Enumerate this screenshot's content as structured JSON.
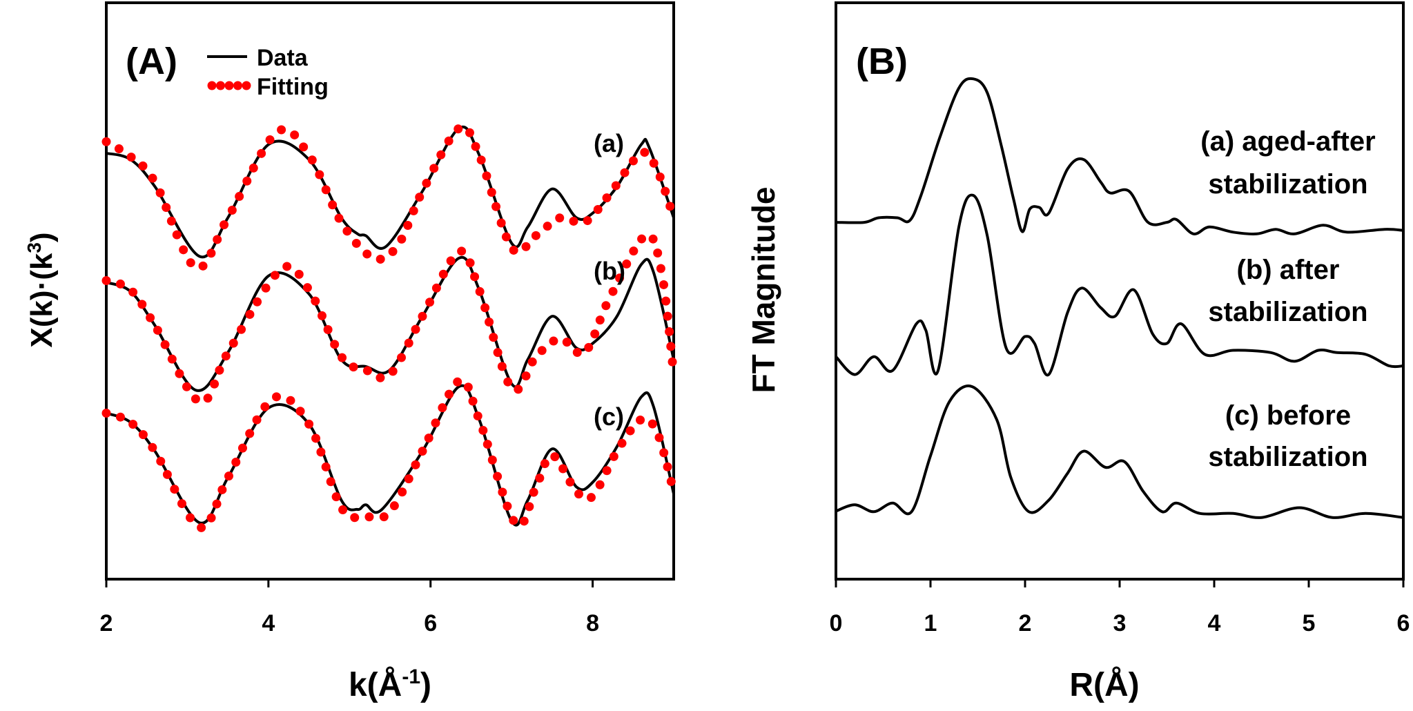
{
  "chart_data": [
    {
      "type": "line",
      "panel_label": "(A)",
      "xlabel": "k(Å-1)",
      "xlabel_base": "k(Å",
      "xlabel_sup": "-1",
      "xlabel_close": ")",
      "ylabel": "X(k)·(k3)",
      "ylabel_base": "X(k)·(k",
      "ylabel_sup": "3",
      "ylabel_close": ")",
      "xlim": [
        2,
        9
      ],
      "ylim": [
        0,
        10
      ],
      "xticks": [
        2,
        4,
        6,
        8
      ],
      "xtick_labels": [
        "2",
        "4",
        "6",
        "8"
      ],
      "grid": false,
      "legend": {
        "placement": "top-left",
        "entries": [
          {
            "label": "Data",
            "style": "solid",
            "color": "#000000"
          },
          {
            "label": "Fitting",
            "style": "dotted",
            "color": "#ff0000"
          }
        ]
      },
      "curve_labels": [
        "(a)",
        "(b)",
        "(c)"
      ],
      "series": [
        {
          "name": "(a) Data",
          "style": "solid",
          "color": "#000000",
          "x": [
            2,
            2.3,
            2.6,
            3.15,
            3.5,
            4.0,
            4.5,
            4.9,
            5.1,
            5.2,
            5.45,
            5.9,
            6.35,
            6.6,
            7.0,
            7.2,
            7.5,
            7.8,
            8.0,
            8.3,
            8.6,
            8.7,
            9.0
          ],
          "y": [
            7.39,
            7.28,
            6.81,
            5.6,
            6.27,
            7.54,
            7.28,
            6.27,
            5.99,
            5.96,
            5.77,
            6.73,
            7.82,
            7.36,
            5.83,
            6.11,
            6.77,
            6.27,
            6.35,
            6.81,
            7.54,
            7.48,
            6.27
          ]
        },
        {
          "name": "(a) Fitting",
          "style": "dotted",
          "color": "#ff0000",
          "x": [
            2,
            2.3,
            2.6,
            3.1,
            3.5,
            4.1,
            4.5,
            4.9,
            5.3,
            5.6,
            5.9,
            6.35,
            6.6,
            7.0,
            7.3,
            7.6,
            7.9,
            8.2,
            8.6,
            8.8,
            9.0
          ],
          "y": [
            7.59,
            7.33,
            6.89,
            5.41,
            6.27,
            7.75,
            7.36,
            6.19,
            5.57,
            5.8,
            6.73,
            7.82,
            7.36,
            5.75,
            5.96,
            6.27,
            6.19,
            6.66,
            7.39,
            7.08,
            6.27
          ]
        },
        {
          "name": "(b) Data",
          "style": "solid",
          "color": "#000000",
          "x": [
            2,
            2.3,
            2.6,
            3.1,
            3.5,
            4.0,
            4.5,
            4.9,
            5.2,
            5.5,
            5.9,
            6.35,
            6.6,
            7.0,
            7.2,
            7.5,
            7.8,
            8.0,
            8.3,
            8.6,
            8.75,
            9.0
          ],
          "y": [
            5.15,
            4.99,
            4.4,
            3.28,
            3.93,
            5.26,
            4.95,
            3.81,
            3.69,
            3.63,
            4.56,
            5.57,
            5.02,
            3.39,
            3.81,
            4.56,
            4.01,
            4.09,
            4.56,
            5.46,
            5.33,
            3.81
          ]
        },
        {
          "name": "(b) Fitting",
          "style": "dotted",
          "color": "#ff0000",
          "x": [
            2,
            2.3,
            2.6,
            3.15,
            3.5,
            4.15,
            4.5,
            4.9,
            5.2,
            5.5,
            5.9,
            6.35,
            6.6,
            7.0,
            7.3,
            7.6,
            7.9,
            8.2,
            8.65,
            8.85,
            9.0
          ],
          "y": [
            5.18,
            5.02,
            4.4,
            3.08,
            3.93,
            5.37,
            5.02,
            3.86,
            3.63,
            3.55,
            4.56,
            5.68,
            5.02,
            3.31,
            3.86,
            4.17,
            3.93,
            4.85,
            5.96,
            5.33,
            3.55
          ]
        },
        {
          "name": "(c) Data",
          "style": "solid",
          "color": "#000000",
          "x": [
            2,
            2.3,
            2.6,
            3.15,
            3.5,
            4.0,
            4.5,
            4.9,
            5.1,
            5.2,
            5.4,
            5.9,
            6.35,
            6.6,
            7.0,
            7.2,
            7.5,
            7.8,
            8.0,
            8.3,
            8.6,
            8.75,
            9.0
          ],
          "y": [
            2.88,
            2.72,
            2.22,
            0.98,
            1.76,
            2.97,
            2.69,
            1.37,
            1.21,
            1.29,
            1.21,
            2.22,
            3.34,
            2.77,
            1.01,
            1.37,
            2.26,
            1.6,
            1.68,
            2.3,
            3.16,
            3.0,
            1.48
          ]
        },
        {
          "name": "(c) Fitting",
          "style": "dotted",
          "color": "#ff0000",
          "x": [
            2,
            2.3,
            2.6,
            3.15,
            3.5,
            4.05,
            4.5,
            4.9,
            5.2,
            5.5,
            5.9,
            6.35,
            6.6,
            7.05,
            7.3,
            7.5,
            7.8,
            8.0,
            8.3,
            8.6,
            8.8,
            9.0
          ],
          "y": [
            2.88,
            2.72,
            2.22,
            0.9,
            1.76,
            3.13,
            2.69,
            1.24,
            1.09,
            1.17,
            2.22,
            3.44,
            2.77,
            0.96,
            1.6,
            2.15,
            1.52,
            1.44,
            2.22,
            2.77,
            2.53,
            1.52
          ]
        }
      ]
    },
    {
      "type": "line",
      "panel_label": "(B)",
      "xlabel": "R(Å)",
      "ylabel": "FT Magnitude",
      "xlim": [
        0,
        6
      ],
      "ylim": [
        0,
        10
      ],
      "xticks": [
        0,
        1,
        2,
        3,
        4,
        5,
        6
      ],
      "xtick_labels": [
        "0",
        "1",
        "2",
        "3",
        "4",
        "5",
        "6"
      ],
      "grid": false,
      "annotations": [
        {
          "line1": "(a) aged-after",
          "line2": "stabilization"
        },
        {
          "line1": "(b) after",
          "line2": "stabilization"
        },
        {
          "line1": "(c) before",
          "line2": "stabilization"
        }
      ],
      "series": [
        {
          "name": "(a) aged-after stabilization",
          "color": "#000000",
          "x": [
            0,
            0.3,
            0.45,
            0.65,
            0.78,
            0.9,
            1.1,
            1.3,
            1.45,
            1.6,
            1.75,
            1.88,
            1.97,
            2.05,
            2.15,
            2.25,
            2.45,
            2.62,
            2.8,
            2.9,
            3.1,
            3.3,
            3.5,
            3.6,
            3.78,
            3.95,
            4.2,
            4.45,
            4.65,
            4.85,
            5.15,
            5.4,
            5.8,
            6.0
          ],
          "y": [
            6.19,
            6.19,
            6.27,
            6.27,
            6.22,
            6.66,
            7.67,
            8.52,
            8.68,
            8.44,
            7.51,
            6.58,
            6.03,
            6.42,
            6.45,
            6.35,
            7.12,
            7.28,
            6.89,
            6.7,
            6.73,
            6.19,
            6.19,
            6.24,
            5.99,
            6.11,
            6.02,
            5.99,
            6.07,
            5.99,
            6.14,
            6.02,
            6.07,
            6.05
          ]
        },
        {
          "name": "(b) after stabilization",
          "color": "#000000",
          "x": [
            0,
            0.2,
            0.4,
            0.6,
            0.85,
            0.95,
            1.08,
            1.3,
            1.45,
            1.6,
            1.8,
            2.0,
            2.1,
            2.25,
            2.45,
            2.6,
            2.8,
            2.95,
            3.15,
            3.35,
            3.5,
            3.65,
            3.9,
            4.2,
            4.6,
            4.85,
            5.1,
            5.3,
            5.6,
            5.85,
            6.0
          ],
          "y": [
            3.86,
            3.55,
            3.86,
            3.62,
            4.43,
            4.32,
            3.62,
            6.11,
            6.66,
            5.96,
            4.01,
            4.21,
            4.09,
            3.55,
            4.63,
            5.05,
            4.71,
            4.56,
            5.02,
            4.25,
            4.09,
            4.43,
            3.9,
            3.97,
            3.93,
            3.78,
            3.97,
            3.93,
            3.9,
            3.7,
            3.7
          ]
        },
        {
          "name": "(c) before stabilization",
          "color": "#000000",
          "x": [
            0,
            0.2,
            0.4,
            0.6,
            0.8,
            1.0,
            1.2,
            1.44,
            1.7,
            1.85,
            2.04,
            2.25,
            2.45,
            2.62,
            2.85,
            3.05,
            3.25,
            3.45,
            3.6,
            3.85,
            4.2,
            4.5,
            4.9,
            5.25,
            5.6,
            6.0
          ],
          "y": [
            1.18,
            1.29,
            1.17,
            1.32,
            1.17,
            2.14,
            3.08,
            3.34,
            2.77,
            1.76,
            1.17,
            1.37,
            1.84,
            2.22,
            1.94,
            2.04,
            1.52,
            1.17,
            1.32,
            1.14,
            1.14,
            1.07,
            1.24,
            1.07,
            1.14,
            1.07
          ]
        }
      ]
    }
  ]
}
